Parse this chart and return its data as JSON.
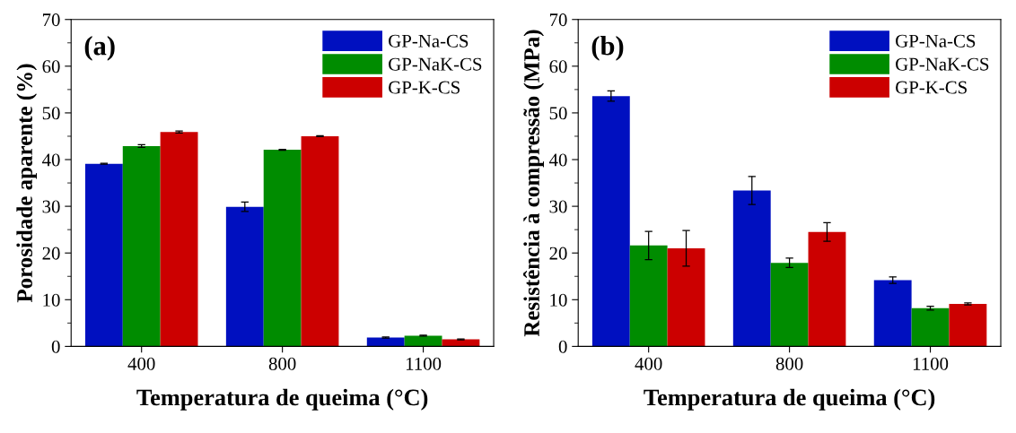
{
  "chart_data": [
    {
      "type": "bar",
      "xlabel": "Temperatura de queima (°C)",
      "ylabel": "Porosidade aparente (%)",
      "annotations": [
        "(a)"
      ],
      "categories": [
        "400",
        "800",
        "1100"
      ],
      "ylim": [
        0,
        70
      ],
      "yticks": [
        0,
        {
          "value": 5,
          "label": null
        },
        10,
        {
          "value": 15,
          "label": null
        },
        20,
        {
          "value": 25,
          "label": null
        },
        30,
        {
          "value": 35,
          "label": null
        },
        40,
        {
          "value": 45,
          "label": null
        },
        50,
        {
          "value": 55,
          "label": null
        },
        60,
        {
          "value": 65,
          "label": null
        },
        70
      ],
      "legend": "top right",
      "grid": false,
      "series": [
        {
          "name": "GP-Na-CS",
          "color": "#0010c0",
          "values": [
            39.1,
            29.9,
            1.9
          ],
          "errors": [
            0.1,
            1.0,
            0.1
          ]
        },
        {
          "name": "GP-NaK-CS",
          "color": "#008c00",
          "values": [
            42.9,
            42.1,
            2.3
          ],
          "errors": [
            0.3,
            0.1,
            0.1
          ]
        },
        {
          "name": "GP-K-CS",
          "color": "#cc0000",
          "values": [
            45.9,
            45.0,
            1.5
          ],
          "errors": [
            0.2,
            0.1,
            0.1
          ]
        }
      ]
    },
    {
      "type": "bar",
      "xlabel": "Temperatura de queima (°C)",
      "ylabel": "Resistência à compressão (MPa)",
      "annotations": [
        "(b)"
      ],
      "categories": [
        "400",
        "800",
        "1100"
      ],
      "ylim": [
        0,
        70
      ],
      "yticks": [
        0,
        {
          "value": 5,
          "label": null
        },
        10,
        {
          "value": 15,
          "label": null
        },
        20,
        {
          "value": 25,
          "label": null
        },
        30,
        {
          "value": 35,
          "label": null
        },
        40,
        {
          "value": 45,
          "label": null
        },
        50,
        {
          "value": 55,
          "label": null
        },
        60,
        {
          "value": 65,
          "label": null
        },
        70
      ],
      "legend": "top right",
      "grid": false,
      "series": [
        {
          "name": "GP-Na-CS",
          "color": "#0010c0",
          "values": [
            53.6,
            33.4,
            14.2
          ],
          "errors": [
            1.1,
            3.0,
            0.7
          ]
        },
        {
          "name": "GP-NaK-CS",
          "color": "#008c00",
          "values": [
            21.6,
            17.9,
            8.2
          ],
          "errors": [
            3.0,
            1.0,
            0.4
          ]
        },
        {
          "name": "GP-K-CS",
          "color": "#cc0000",
          "values": [
            21.0,
            24.5,
            9.1
          ],
          "errors": [
            3.8,
            2.0,
            0.2
          ]
        }
      ]
    }
  ]
}
